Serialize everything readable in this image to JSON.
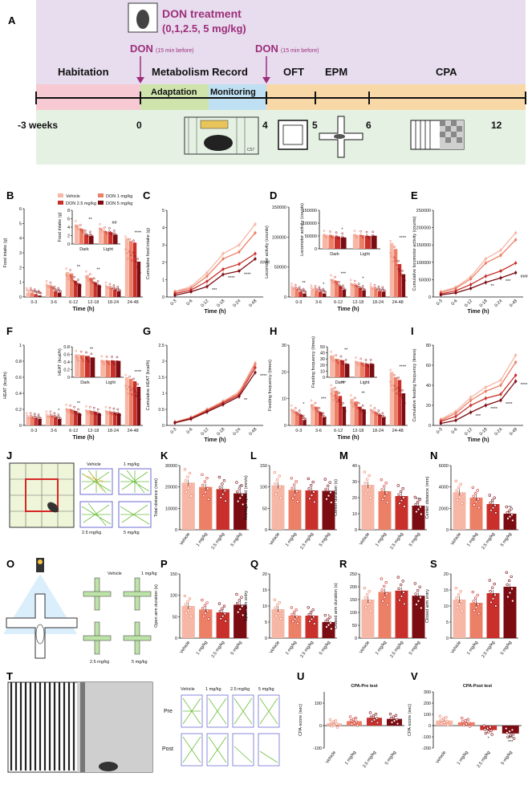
{
  "panel_labels": [
    "A",
    "B",
    "C",
    "D",
    "E",
    "F",
    "G",
    "H",
    "I",
    "J",
    "K",
    "L",
    "M",
    "N",
    "O",
    "P",
    "Q",
    "R",
    "S",
    "T",
    "U",
    "V"
  ],
  "colors": {
    "vehicle": "#f6b7a6",
    "d1": "#ec8067",
    "d25": "#c9302b",
    "d5": "#7a0c12",
    "timeline_bg": "#e7ddef",
    "green_bg": "#e5f2e3",
    "purple_text": "#9d2f7a"
  },
  "timeline": {
    "treatment_title": "DON treatment",
    "treatment_doses": "(0,1,2.5, 5 mg/kg)",
    "don_label": "DON",
    "don_note": "(15 min before)",
    "phases": [
      "Habitation",
      "Metabolism Record",
      "OFT",
      "EPM",
      "CPA"
    ],
    "sub_phases": [
      "Adaptation",
      "Monitoring"
    ],
    "ticks": [
      "-3 weeks",
      "0",
      "4",
      "5",
      "6",
      "12"
    ],
    "cage_label": "C57"
  },
  "legend": [
    "Vehicle",
    "DON 1 mg/kg",
    "DON 2.5 mg/kg",
    "DON 5 mg/kg"
  ],
  "dose_labels": [
    "Vehicle",
    "1 mg/kg",
    "2.5 mg/kg",
    "5 mg/kg"
  ],
  "time_bins": [
    "0-3",
    "3-6",
    "6-12",
    "12-18",
    "18-24",
    "24-48"
  ],
  "time_cum": [
    "0-3",
    "0-6",
    "0-12",
    "0-18",
    "0-24",
    "0-48"
  ],
  "dark_light": [
    "Dark",
    "Light"
  ],
  "time_xlabel": "Time (h)",
  "track_labels": [
    "Vehicle",
    "1 mg/kg",
    "2.5 mg/kg",
    "5 mg/kg"
  ],
  "cpa_rows": [
    "Pre",
    "Post"
  ],
  "chart_data": [
    {
      "panel": "B",
      "type": "bar",
      "ylabel": "Food intake (g)",
      "categories": [
        "0-3",
        "3-6",
        "6-12",
        "12-18",
        "18-24",
        "24-48"
      ],
      "ylim": [
        0,
        6
      ],
      "yticks": [
        0,
        1,
        2,
        3,
        4,
        5,
        6
      ],
      "series": [
        {
          "name": "Vehicle",
          "values": [
            0.3,
            0.8,
            1.7,
            1.5,
            0.7,
            4.0
          ]
        },
        {
          "name": "DON 1 mg/kg",
          "values": [
            0.3,
            0.7,
            1.6,
            1.3,
            0.6,
            3.8
          ]
        },
        {
          "name": "DON 2.5 mg/kg",
          "values": [
            0.2,
            0.4,
            1.1,
            1.0,
            0.5,
            3.7
          ]
        },
        {
          "name": "DON 5 mg/kg",
          "values": [
            0.1,
            0.3,
            0.9,
            0.8,
            0.4,
            2.4
          ]
        }
      ],
      "sig": [
        "",
        "",
        "**",
        "**",
        "",
        "****"
      ]
    },
    {
      "panel": "B-inset",
      "type": "bar",
      "ylabel": "Food intake (g)",
      "categories": [
        "Dark",
        "Light"
      ],
      "ylim": [
        0,
        8
      ],
      "yticks": [
        0,
        2,
        4,
        6,
        8
      ],
      "series": [
        {
          "name": "Vehicle",
          "values": [
            4.6,
            3.8
          ]
        },
        {
          "name": "DON 1 mg/kg",
          "values": [
            3.6,
            3.0
          ]
        },
        {
          "name": "DON 2.5 mg/kg",
          "values": [
            2.2,
            2.8
          ]
        },
        {
          "name": "DON 5 mg/kg",
          "values": [
            1.9,
            2.2
          ]
        }
      ],
      "sig": [
        "**",
        "##"
      ]
    },
    {
      "panel": "C",
      "type": "line",
      "ylabel": "Cumulative food intake (g)",
      "categories": [
        "0-3",
        "0-6",
        "0-12",
        "0-18",
        "0-24",
        "0-48"
      ],
      "ylim": [
        0,
        5
      ],
      "yticks": [
        0,
        1,
        2,
        3,
        4,
        5
      ],
      "series": [
        {
          "name": "Vehicle",
          "values": [
            0.3,
            0.6,
            1.4,
            2.5,
            3.0,
            4.2
          ]
        },
        {
          "name": "DON 1 mg/kg",
          "values": [
            0.3,
            0.5,
            1.2,
            2.2,
            2.6,
            3.7
          ]
        },
        {
          "name": "DON 2.5 mg/kg",
          "values": [
            0.2,
            0.4,
            0.9,
            1.6,
            1.9,
            2.5
          ]
        },
        {
          "name": "DON 5 mg/kg",
          "values": [
            0.1,
            0.3,
            0.6,
            1.3,
            1.5,
            2.2
          ]
        }
      ],
      "sig": [
        "",
        "",
        "***",
        "****",
        "****",
        "####"
      ]
    },
    {
      "panel": "D",
      "type": "bar",
      "ylabel": "Locomotor activity (counts)",
      "categories": [
        "0-3",
        "3-6",
        "6-12",
        "12-18",
        "18-24",
        "24-48"
      ],
      "ylim": [
        0,
        150000
      ],
      "yticks": [
        0,
        50000,
        100000,
        150000
      ],
      "series": [
        {
          "name": "Vehicle",
          "values": [
            15000,
            12000,
            30000,
            22000,
            15000,
            90000
          ]
        },
        {
          "name": "DON 1 mg/kg",
          "values": [
            13000,
            11000,
            27000,
            20000,
            13000,
            80000
          ]
        },
        {
          "name": "DON 2.5 mg/kg",
          "values": [
            9000,
            9000,
            18000,
            15000,
            10000,
            55000
          ]
        },
        {
          "name": "DON 5 mg/kg",
          "values": [
            6000,
            6000,
            12000,
            11000,
            9000,
            38000
          ]
        }
      ],
      "sig": [
        "**",
        "*",
        "***",
        "*",
        "",
        "****"
      ]
    },
    {
      "panel": "D-inset",
      "type": "bar",
      "ylabel": "Locomotor activity (counts)",
      "categories": [
        "Dark",
        "Light"
      ],
      "ylim": [
        0,
        150000
      ],
      "yticks": [
        0,
        50000,
        100000,
        150000
      ],
      "series": [
        {
          "name": "Vehicle",
          "values": [
            55000,
            55000
          ]
        },
        {
          "name": "DON 1 mg/kg",
          "values": [
            52000,
            53000
          ]
        },
        {
          "name": "DON 2.5 mg/kg",
          "values": [
            48000,
            50000
          ]
        },
        {
          "name": "DON 5 mg/kg",
          "values": [
            44000,
            51000
          ]
        }
      ],
      "sig": [
        "*",
        ""
      ]
    },
    {
      "panel": "E",
      "type": "line",
      "ylabel": "Cumulative locomotor activity (counts)",
      "categories": [
        "0-3",
        "0-6",
        "0-12",
        "0-18",
        "0-24",
        "0-48"
      ],
      "ylim": [
        0,
        250000
      ],
      "yticks": [
        0,
        50000,
        100000,
        150000,
        200000,
        250000
      ],
      "series": [
        {
          "name": "Vehicle",
          "values": [
            15000,
            28000,
            58000,
            110000,
            135000,
            185000
          ]
        },
        {
          "name": "DON 1 mg/kg",
          "values": [
            13000,
            25000,
            52000,
            98000,
            120000,
            165000
          ]
        },
        {
          "name": "DON 2.5 mg/kg",
          "values": [
            9000,
            18000,
            36000,
            60000,
            75000,
            98000
          ]
        },
        {
          "name": "DON 5 mg/kg",
          "values": [
            6000,
            12000,
            25000,
            42000,
            55000,
            70000
          ]
        }
      ],
      "sig": [
        "",
        "",
        "",
        "**",
        "***",
        "###"
      ]
    },
    {
      "panel": "F",
      "type": "bar",
      "ylabel": "HEAT (kcal/h)",
      "categories": [
        "0-3",
        "3-6",
        "6-12",
        "12-18",
        "18-24",
        "24-48"
      ],
      "ylim": [
        0,
        1
      ],
      "yticks": [
        0,
        0.2,
        0.4,
        0.6,
        0.8,
        1.0
      ],
      "series": [
        {
          "name": "Vehicle",
          "values": [
            0.1,
            0.12,
            0.21,
            0.19,
            0.18,
            0.6
          ]
        },
        {
          "name": "DON 1 mg/kg",
          "values": [
            0.1,
            0.12,
            0.2,
            0.18,
            0.17,
            0.58
          ]
        },
        {
          "name": "DON 2.5 mg/kg",
          "values": [
            0.09,
            0.1,
            0.18,
            0.17,
            0.16,
            0.55
          ]
        },
        {
          "name": "DON 5 mg/kg",
          "values": [
            0.08,
            0.08,
            0.15,
            0.15,
            0.15,
            0.48
          ]
        }
      ],
      "sig": [
        "",
        "*",
        "**",
        "",
        "",
        "****"
      ]
    },
    {
      "panel": "F-inset",
      "type": "bar",
      "ylabel": "HEAT (kcal/h)",
      "categories": [
        "Dark",
        "Light"
      ],
      "ylim": [
        0,
        0.8
      ],
      "yticks": [
        0,
        0.2,
        0.4,
        0.6,
        0.8
      ],
      "series": [
        {
          "name": "Vehicle",
          "values": [
            0.6,
            0.45
          ]
        },
        {
          "name": "DON 1 mg/kg",
          "values": [
            0.58,
            0.44
          ]
        },
        {
          "name": "DON 2.5 mg/kg",
          "values": [
            0.56,
            0.44
          ]
        },
        {
          "name": "DON 5 mg/kg",
          "values": [
            0.52,
            0.43
          ]
        }
      ],
      "sig": [
        "**",
        ""
      ]
    },
    {
      "panel": "G",
      "type": "line",
      "ylabel": "Cumulative HEAT (kcal/h)",
      "categories": [
        "0-3",
        "0-6",
        "0-12",
        "0-18",
        "0-24",
        "0-48"
      ],
      "ylim": [
        0,
        2.5
      ],
      "yticks": [
        0,
        0.5,
        1.0,
        1.5,
        2.0,
        2.5
      ],
      "series": [
        {
          "name": "Vehicle",
          "values": [
            0.1,
            0.25,
            0.5,
            0.75,
            1.05,
            1.95
          ]
        },
        {
          "name": "DON 1 mg/kg",
          "values": [
            0.1,
            0.24,
            0.48,
            0.73,
            1.0,
            1.9
          ]
        },
        {
          "name": "DON 2.5 mg/kg",
          "values": [
            0.09,
            0.22,
            0.45,
            0.7,
            0.95,
            1.8
          ]
        },
        {
          "name": "DON 5 mg/kg",
          "values": [
            0.08,
            0.2,
            0.42,
            0.65,
            0.9,
            1.65
          ]
        }
      ],
      "sig": [
        "",
        "",
        "",
        "",
        "**",
        "****"
      ]
    },
    {
      "panel": "H",
      "type": "bar",
      "ylabel": "Feeding frequency (times)",
      "categories": [
        "0-3",
        "3-6",
        "6-12",
        "12-18",
        "18-24",
        "24-48"
      ],
      "ylim": [
        0,
        30
      ],
      "yticks": [
        0,
        10,
        20,
        30
      ],
      "series": [
        {
          "name": "Vehicle",
          "values": [
            6,
            8,
            14,
            10,
            6,
            20
          ]
        },
        {
          "name": "DON 1 mg/kg",
          "values": [
            5,
            7,
            13,
            9,
            5,
            18
          ]
        },
        {
          "name": "DON 2.5 mg/kg",
          "values": [
            4,
            5,
            11,
            7,
            4,
            17
          ]
        },
        {
          "name": "DON 5 mg/kg",
          "values": [
            2,
            3,
            7,
            6,
            3,
            12
          ]
        }
      ],
      "sig": [
        "*",
        "***",
        "***",
        "**",
        "",
        "****"
      ]
    },
    {
      "panel": "H-inset",
      "type": "bar",
      "ylabel": "Feeding frequency (times)",
      "categories": [
        "Dark",
        "Light"
      ],
      "ylim": [
        0,
        50
      ],
      "yticks": [
        0,
        10,
        20,
        30,
        40,
        50
      ],
      "series": [
        {
          "name": "Vehicle",
          "values": [
            36,
            26
          ]
        },
        {
          "name": "DON 1 mg/kg",
          "values": [
            30,
            24
          ]
        },
        {
          "name": "DON 2.5 mg/kg",
          "values": [
            28,
            22
          ]
        },
        {
          "name": "DON 5 mg/kg",
          "values": [
            22,
            22
          ]
        }
      ],
      "sig": [
        "**",
        ""
      ]
    },
    {
      "panel": "I",
      "type": "line",
      "ylabel": "Cumulative feeding frequency (times)",
      "categories": [
        "0-3",
        "0-6",
        "0-12",
        "0-18",
        "0-24",
        "0-48"
      ],
      "ylim": [
        0,
        80
      ],
      "yticks": [
        0,
        20,
        40,
        60,
        80
      ],
      "series": [
        {
          "name": "Vehicle",
          "values": [
            6,
            14,
            28,
            38,
            45,
            70
          ]
        },
        {
          "name": "DON 1 mg/kg",
          "values": [
            5,
            12,
            25,
            34,
            40,
            63
          ]
        },
        {
          "name": "DON 2.5 mg/kg",
          "values": [
            4,
            9,
            20,
            27,
            31,
            50
          ]
        },
        {
          "name": "DON 5 mg/kg",
          "values": [
            2,
            5,
            13,
            20,
            25,
            44
          ]
        }
      ],
      "sig": [
        "",
        "",
        "***",
        "****",
        "****",
        "****"
      ]
    },
    {
      "panel": "K",
      "type": "bar",
      "ylabel": "Total distance (mm)",
      "categories": [
        "Vehicle",
        "1 mg/kg",
        "2.5 mg/kg",
        "5 mg/kg"
      ],
      "ylim": [
        0,
        30000
      ],
      "yticks": [
        0,
        10000,
        20000,
        30000
      ],
      "values": [
        22000,
        20000,
        19000,
        17000
      ],
      "sig": [
        "",
        "",
        "",
        "**"
      ]
    },
    {
      "panel": "L",
      "type": "bar",
      "ylabel": "Average speed (mm/s)",
      "categories": [
        "Vehicle",
        "1 mg/kg",
        "2.5 mg/kg",
        "5 mg/kg"
      ],
      "ylim": [
        0,
        150
      ],
      "yticks": [
        0,
        50,
        100,
        150
      ],
      "values": [
        104,
        93,
        92,
        91
      ],
      "sig": [
        "",
        "",
        "",
        ""
      ]
    },
    {
      "panel": "M",
      "type": "bar",
      "ylabel": "Center duration (s)",
      "categories": [
        "Vehicle",
        "1 mg/kg",
        "2.5 mg/kg",
        "5 mg/kg"
      ],
      "ylim": [
        0,
        40
      ],
      "yticks": [
        0,
        10,
        20,
        30,
        40
      ],
      "values": [
        28,
        24,
        21,
        15
      ],
      "sig": [
        "",
        "",
        "",
        "***"
      ]
    },
    {
      "panel": "N",
      "type": "bar",
      "ylabel": "Center distance (mm)",
      "categories": [
        "Vehicle",
        "1 mg/kg",
        "2.5 mg/kg",
        "5 mg/kg"
      ],
      "ylim": [
        0,
        6000
      ],
      "yticks": [
        0,
        2000,
        4000,
        6000
      ],
      "values": [
        3500,
        3000,
        2400,
        1500
      ],
      "sig": [
        "",
        "",
        "",
        "**"
      ]
    },
    {
      "panel": "P",
      "type": "bar",
      "ylabel": "Open arm duration (s)",
      "categories": [
        "Vehicle",
        "1 mg/kg",
        "2.5 mg/kg",
        "5 mg/kg"
      ],
      "ylim": [
        0,
        150
      ],
      "yticks": [
        0,
        50,
        100,
        150
      ],
      "values": [
        75,
        67,
        60,
        78
      ],
      "sig": [
        "",
        "",
        "",
        ""
      ]
    },
    {
      "panel": "Q",
      "type": "bar",
      "ylabel": "Open arm entry",
      "categories": [
        "Vehicle",
        "1 mg/kg",
        "2.5 mg/kg",
        "5 mg/kg"
      ],
      "ylim": [
        0,
        20
      ],
      "yticks": [
        0,
        5,
        10,
        15,
        20
      ],
      "values": [
        9,
        7,
        7,
        5
      ],
      "sig": [
        "",
        "",
        "",
        "*"
      ]
    },
    {
      "panel": "R",
      "type": "bar",
      "ylabel": "Closed arm duration (s)",
      "categories": [
        "Vehicle",
        "1 mg/kg",
        "2.5 mg/kg",
        "5 mg/kg"
      ],
      "ylim": [
        0,
        250
      ],
      "yticks": [
        0,
        50,
        100,
        150,
        200,
        250
      ],
      "values": [
        150,
        180,
        185,
        165
      ],
      "sig": [
        "",
        "",
        "",
        ""
      ]
    },
    {
      "panel": "S",
      "type": "bar",
      "ylabel": "Closed arm entry",
      "categories": [
        "Vehicle",
        "1 mg/kg",
        "2.5 mg/kg",
        "5 mg/kg"
      ],
      "ylim": [
        0,
        20
      ],
      "yticks": [
        0,
        5,
        10,
        15,
        20
      ],
      "values": [
        12,
        11,
        14,
        16
      ],
      "sig": [
        "",
        "",
        "",
        ""
      ]
    },
    {
      "panel": "U",
      "type": "bar",
      "title": "CPA-Pre test",
      "ylabel": "CPA-score (sec)",
      "categories": [
        "Vehicle",
        "1 mg/kg",
        "2.5 mg/kg",
        "5 mg/kg"
      ],
      "ylim": [
        -100,
        150
      ],
      "yticks": [
        -100,
        0,
        100
      ],
      "values": [
        10,
        20,
        35,
        30
      ],
      "sig": [
        "",
        "",
        "",
        ""
      ]
    },
    {
      "panel": "V",
      "type": "bar",
      "title": "CPA-Post test",
      "ylabel": "CPA-score (sec)",
      "categories": [
        "Vehicle",
        "1 mg/kg",
        "2.5 mg/kg",
        "5 mg/kg"
      ],
      "ylim": [
        -200,
        300
      ],
      "yticks": [
        -200,
        -100,
        0,
        100,
        200,
        300
      ],
      "values": [
        45,
        30,
        -40,
        -70
      ],
      "sig": [
        "",
        "",
        "*",
        "***\n##"
      ]
    }
  ]
}
